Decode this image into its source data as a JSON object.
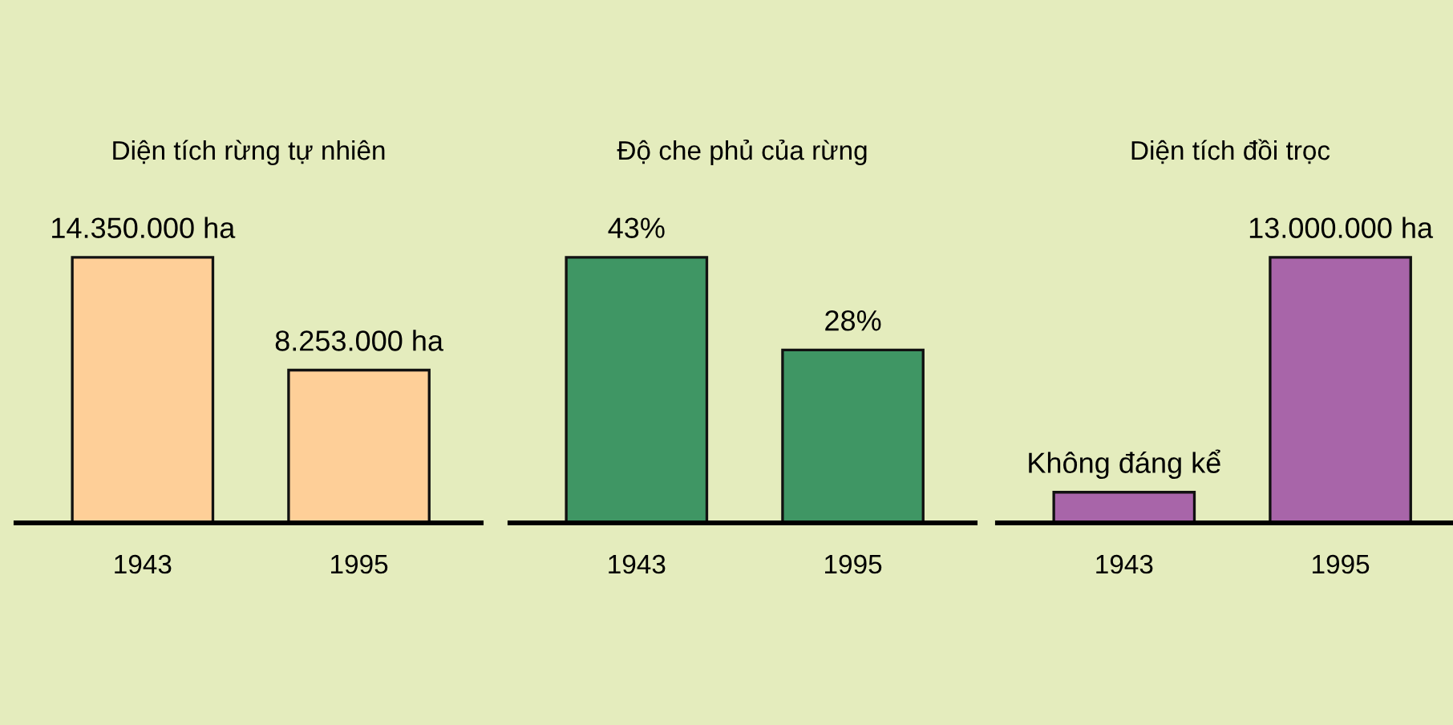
{
  "chart_data": [
    {
      "type": "bar",
      "title": "Diện tích rừng tự nhiên",
      "categories": [
        "1943",
        "1995"
      ],
      "values": [
        14350000,
        8253000
      ],
      "value_labels": [
        "14.350.000 ha",
        "8.253.000 ha"
      ],
      "color": "#fecf98"
    },
    {
      "type": "bar",
      "title": "Độ che phủ của rừng",
      "categories": [
        "1943",
        "1995"
      ],
      "values": [
        43,
        28
      ],
      "value_labels": [
        "43%",
        "28%"
      ],
      "color": "#3f9664"
    },
    {
      "type": "bar",
      "title": "Diện tích đồi trọc",
      "categories": [
        "1943",
        "1995"
      ],
      "values": [
        1500000,
        13000000
      ],
      "value_labels": [
        "Không đáng kể",
        "13.000.000 ha"
      ],
      "color": "#a865a9"
    }
  ]
}
